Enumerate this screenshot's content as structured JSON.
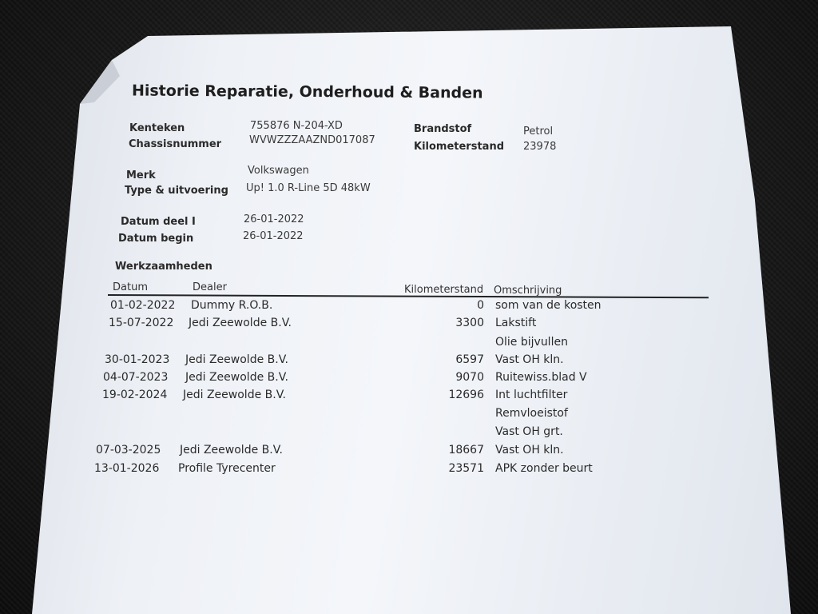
{
  "document": {
    "title": "Historie Reparatie, Onderhoud & Banden",
    "fields": {
      "kenteken": {
        "label": "Kenteken",
        "value": "755876 N-204-XD"
      },
      "chassisnummer": {
        "label": "Chassisnummer",
        "value": "WVWZZZAAZND017087"
      },
      "brandstof": {
        "label": "Brandstof",
        "value": "Petrol"
      },
      "kilometerstand": {
        "label": "Kilometerstand",
        "value": "23978"
      },
      "merk": {
        "label": "Merk",
        "value": "Volkswagen"
      },
      "type": {
        "label": "Type & uitvoering",
        "value": "Up! 1.0 R-Line 5D 48kW"
      },
      "datum_deel": {
        "label": "Datum deel I",
        "value": "26-01-2022"
      },
      "datum_begin": {
        "label": "Datum begin",
        "value": "26-01-2022"
      }
    },
    "section_title": "Werkzaamheden",
    "table": {
      "headers": {
        "datum": "Datum",
        "dealer": "Dealer",
        "km": "Kilometerstand",
        "omschrijving": "Omschrijving"
      },
      "rows": [
        {
          "datum": "01-02-2022",
          "dealer": "Dummy R.O.B.",
          "km": "0",
          "omschrijving": "som van de kosten"
        },
        {
          "datum": "15-07-2022",
          "dealer": "Jedi Zeewolde B.V.",
          "km": "3300",
          "omschrijving": "Lakstift"
        },
        {
          "datum": "",
          "dealer": "",
          "km": "",
          "omschrijving": "Olie bijvullen"
        },
        {
          "datum": "30-01-2023",
          "dealer": "Jedi Zeewolde B.V.",
          "km": "6597",
          "omschrijving": "Vast OH kln."
        },
        {
          "datum": "04-07-2023",
          "dealer": "Jedi Zeewolde B.V.",
          "km": "9070",
          "omschrijving": "Ruitewiss.blad V"
        },
        {
          "datum": "19-02-2024",
          "dealer": "Jedi Zeewolde B.V.",
          "km": "12696",
          "omschrijving": "Int luchtfilter"
        },
        {
          "datum": "",
          "dealer": "",
          "km": "",
          "omschrijving": "Remvloeistof"
        },
        {
          "datum": "",
          "dealer": "",
          "km": "",
          "omschrijving": "Vast OH grt."
        },
        {
          "datum": "07-03-2025",
          "dealer": "Jedi Zeewolde B.V.",
          "km": "18667",
          "omschrijving": "Vast OH kln."
        },
        {
          "datum": "13-01-2026",
          "dealer": "Profile Tyrecenter",
          "km": "23571",
          "omschrijving": "APK zonder beurt"
        }
      ]
    }
  }
}
